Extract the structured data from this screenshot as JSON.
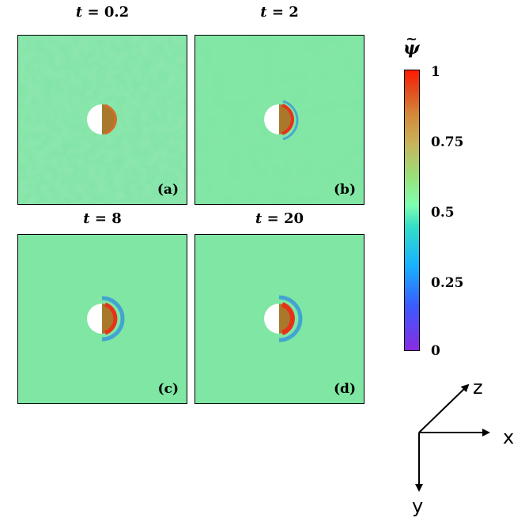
{
  "panels": [
    {
      "time_prefix": "t",
      "time_value": "= 0.2",
      "label": "(a)"
    },
    {
      "time_prefix": "t",
      "time_value": "= 2",
      "label": "(b)"
    },
    {
      "time_prefix": "t",
      "time_value": "= 8",
      "label": "(c)"
    },
    {
      "time_prefix": "t",
      "time_value": "= 20",
      "label": "(d)"
    }
  ],
  "colorbar": {
    "symbol": "ψ",
    "tilde": "~",
    "ticks": [
      "1",
      "0.75",
      "0.5",
      "0.25",
      "0"
    ]
  },
  "axes": {
    "x": "x",
    "y": "y",
    "z": "z"
  },
  "colors": {
    "background_field": "#7fe6a3",
    "disk_left": "#ffffff",
    "disk_right": "#a9782a",
    "rim_red": "#e8311a",
    "rim_blue": "#2f8ee0"
  }
}
